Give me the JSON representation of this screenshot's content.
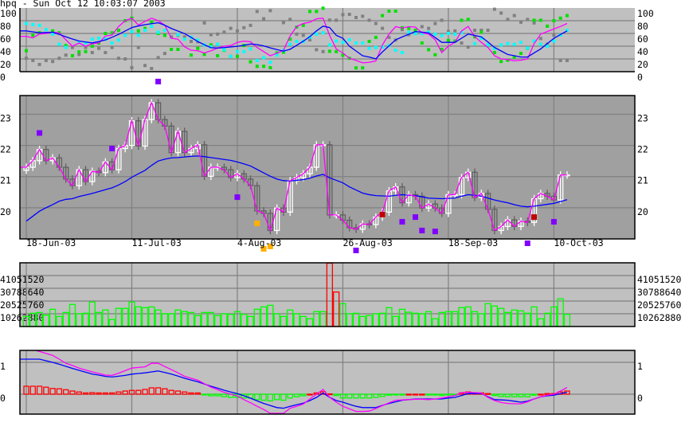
{
  "title": "hpq - Sun Oct 12 10:03:07 2003",
  "colors": {
    "panel_bg": "#c0c0c0",
    "price_bg": "#a0a0a0",
    "grid": "#808080",
    "close_line": "#ff00ff",
    "average_line": "#0000ff",
    "up_candle": "#ffffff",
    "down_candle": "#606060",
    "volume_bar": "#00ff00",
    "volume_highlight": "#ff0000",
    "hist_positive": "#ff0000",
    "hist_negative": "#00ff00",
    "dot_gray": "#808080",
    "dot_green": "#00e000",
    "dot_cyan": "#00ffff",
    "marker_purple": "#8000ff",
    "marker_red": "#c00000",
    "marker_orange": "#ffb000"
  },
  "chart_data": [
    {
      "type": "line",
      "panel": "oscillator",
      "ylim": [
        0,
        100
      ],
      "yticks": [
        "100",
        "80",
        "60",
        "40",
        "20",
        "0"
      ],
      "grid": true,
      "series": [
        {
          "color": "magenta",
          "values": [
            55.5,
            53,
            59,
            60,
            62,
            61,
            50,
            40,
            45,
            40,
            44,
            45,
            56,
            57.5,
            71,
            80,
            84,
            73,
            79,
            84,
            80,
            73,
            52.5,
            51,
            39,
            33.6,
            32.8,
            29.4,
            32.8,
            37,
            40,
            41,
            46,
            48,
            47,
            38,
            31.5,
            25,
            29,
            33.6,
            56,
            71,
            75.6,
            77.7,
            83,
            84,
            56.7,
            35.7,
            29.4,
            21,
            17.6,
            13.9,
            14.7,
            16.8,
            42,
            59,
            70.6,
            68.5,
            70.6,
            70,
            61,
            59,
            50,
            30,
            40,
            46,
            64,
            71,
            55,
            46,
            38,
            25,
            20,
            19,
            17,
            18,
            20,
            44,
            59,
            63,
            67,
            71,
            75.6
          ]
        },
        {
          "color": "blue",
          "values": [
            64,
            62.5,
            61,
            61.5,
            62,
            58.5,
            54.7,
            51.3,
            48.1,
            46.6,
            45.1,
            47.3,
            49.8,
            54,
            58.5,
            63.8,
            69.3,
            71.8,
            73.7,
            75.3,
            76.8,
            72.8,
            67.8,
            63.8,
            59.8,
            53.8,
            47.3,
            42.3,
            37.7,
            37.1,
            37.8,
            38.8,
            39.8,
            41.4,
            43.4,
            42.5,
            40.5,
            37.4,
            34.7,
            32.2,
            35.2,
            41.4,
            47.9,
            55,
            64,
            71.4,
            69.3,
            57,
            52.5,
            40,
            32.5,
            25,
            23,
            20.1,
            31,
            40.5,
            50,
            54.5,
            58.8,
            63,
            62,
            61,
            53.5,
            46,
            46,
            46,
            52.5,
            59,
            56.9,
            54.6,
            46.5,
            38,
            32.5,
            27,
            25,
            23,
            23,
            29.4,
            35.7,
            44,
            52.3,
            58.3,
            64
          ]
        }
      ],
      "dots": [
        {
          "color": "gray",
          "values": [
            21,
            17.6,
            11.3,
            17.6,
            16,
            21,
            26,
            38,
            27,
            38,
            30,
            36.6,
            30,
            38,
            21,
            20,
            6.3,
            38,
            9.7,
            5,
            22,
            28.6,
            54.6,
            57,
            54.6,
            47.5,
            47,
            76.5,
            58,
            59,
            62,
            68,
            64,
            69,
            72.7,
            94.5,
            83,
            95.8,
            null,
            77,
            82,
            59,
            57,
            50,
            34.5,
            31.5,
            81,
            80.7,
            89.5,
            90,
            85,
            87,
            80.7,
            75.6,
            68,
            53.8,
            49.6,
            66,
            58,
            64,
            70.6,
            68,
            75.6,
            80.7,
            63,
            64,
            45,
            38.6,
            65,
            65,
            65,
            98,
            92,
            82,
            88,
            77.7,
            82,
            76.5,
            52,
            43,
            57.5,
            17.6,
            17.6
          ]
        },
        {
          "color": "green",
          "values": [
            33,
            57,
            61,
            null,
            64,
            61,
            41,
            25,
            31,
            31.5,
            40,
            45,
            60,
            61,
            65,
            80,
            84,
            64,
            68,
            78,
            60,
            57,
            35,
            35,
            null,
            26,
            36.6,
            27,
            42,
            25,
            33.6,
            24,
            24,
            41,
            15.5,
            8.4,
            8.4,
            6.3,
            29.4,
            30.7,
            51,
            70,
            72.7,
            94.5,
            94.5,
            99.6,
            32,
            31.5,
            26,
            21,
            5.9,
            5.9,
            47.5,
            53.8,
            88,
            95,
            95,
            69,
            68,
            65,
            45,
            34.5,
            26.5,
            35,
            49,
            48,
            80.7,
            82,
            54.6,
            62,
            41,
            30,
            16,
            18,
            23,
            28.6,
            36.6,
            80.7,
            80.7,
            71.4,
            80,
            84,
            88
          ]
        },
        {
          "color": "cyan",
          "values": [
            75.6,
            74,
            72.7,
            66,
            59,
            43,
            38,
            null,
            46,
            45,
            51,
            52.5,
            51,
            45,
            49.6,
            57,
            63,
            57,
            65,
            71,
            62,
            65,
            null,
            58,
            51,
            54,
            49.6,
            42,
            39,
            43,
            34.5,
            24,
            31.5,
            31.5,
            35.7,
            17.6,
            22,
            14.7,
            26,
            33.6,
            43,
            47.5,
            47.5,
            54,
            59,
            61,
            42,
            48,
            46,
            50,
            45,
            45,
            36.6,
            38,
            38.6,
            40.8,
            33.6,
            30,
            61.8,
            59.7,
            59.7,
            62,
            59,
            56.7,
            60,
            59,
            61,
            null,
            44,
            52.5,
            42,
            36.6,
            42,
            44,
            42.9,
            46,
            37,
            48,
            43,
            40,
            48,
            57.5,
            65
          ]
        }
      ]
    },
    {
      "type": "candlestick",
      "panel": "price",
      "ylim": [
        19.0,
        23.6
      ],
      "yticks": [
        "23",
        "22",
        "21",
        "20"
      ],
      "grid": true,
      "xtick_labels": [
        {
          "index": 0,
          "label": "18-Jun-03"
        },
        {
          "index": 16,
          "label": "11-Jul-03"
        },
        {
          "index": 32,
          "label": "4-Aug-03"
        },
        {
          "index": 48,
          "label": "26-Aug-03"
        },
        {
          "index": 64,
          "label": "18-Sep-03"
        },
        {
          "index": 80,
          "label": "10-Oct-03"
        }
      ],
      "close": [
        21.3,
        21.51,
        21.87,
        21.51,
        21.6,
        21.3,
        20.92,
        20.71,
        21.22,
        20.84,
        21.17,
        21.13,
        21.47,
        21.22,
        21.9,
        22.0,
        22.79,
        21.98,
        22.83,
        23.37,
        22.83,
        22.62,
        21.77,
        22.45,
        21.77,
        21.9,
        22.02,
        21.01,
        21.3,
        21.3,
        21.22,
        20.97,
        21.09,
        20.92,
        20.71,
        19.9,
        19.82,
        19.27,
        19.99,
        19.86,
        20.87,
        20.97,
        21.09,
        21.3,
        22.02,
        22.02,
        19.77,
        19.77,
        19.6,
        19.36,
        19.31,
        19.48,
        19.46,
        19.7,
        19.86,
        20.54,
        20.67,
        20.16,
        20.42,
        20.37,
        19.99,
        20.12,
        19.99,
        19.82,
        20.42,
        20.42,
        20.97,
        21.14,
        20.33,
        20.46,
        19.95,
        19.27,
        19.4,
        19.61,
        19.4,
        19.57,
        19.53,
        20.29,
        20.46,
        20.37,
        20.25,
        21.05,
        21.05
      ],
      "moving_average": [
        19.57,
        19.73,
        19.89,
        20.0,
        20.1,
        20.21,
        20.27,
        20.29,
        20.36,
        20.41,
        20.46,
        20.52,
        20.58,
        20.64,
        20.73,
        20.84,
        20.98,
        21.09,
        21.2,
        21.36,
        21.5,
        21.56,
        21.6,
        21.61,
        21.63,
        21.65,
        21.66,
        21.64,
        21.61,
        21.58,
        21.55,
        21.52,
        21.47,
        21.41,
        21.34,
        21.23,
        21.12,
        21.01,
        20.92,
        20.87,
        20.86,
        20.88,
        20.9,
        20.95,
        21.02,
        21.07,
        20.96,
        20.88,
        20.8,
        20.67,
        20.57,
        20.47,
        20.42,
        20.39,
        20.38,
        20.37,
        20.4,
        20.42,
        20.4,
        20.39,
        20.35,
        20.31,
        20.3,
        20.29,
        20.3,
        20.31,
        20.37,
        20.42,
        20.4,
        20.37,
        20.31,
        20.25,
        20.2,
        20.16,
        20.1,
        20.05,
        20.03,
        20.05,
        20.08,
        20.11,
        20.14,
        20.2,
        20.26
      ],
      "markers": [
        {
          "index": 2,
          "value": 22.4,
          "color": "purple"
        },
        {
          "index": 13,
          "value": 21.9,
          "color": "purple"
        },
        {
          "index": 20,
          "value": 24.05,
          "color": "purple"
        },
        {
          "index": 32,
          "value": 20.34,
          "color": "purple"
        },
        {
          "index": 35,
          "value": 19.5,
          "color": "orange"
        },
        {
          "index": 36,
          "value": 18.68,
          "color": "orange"
        },
        {
          "index": 37,
          "value": 18.76,
          "color": "orange"
        },
        {
          "index": 50,
          "value": 18.63,
          "color": "purple"
        },
        {
          "index": 54,
          "value": 19.78,
          "color": "red"
        },
        {
          "index": 57,
          "value": 19.55,
          "color": "purple"
        },
        {
          "index": 59,
          "value": 19.7,
          "color": "purple"
        },
        {
          "index": 60,
          "value": 19.27,
          "color": "purple"
        },
        {
          "index": 62,
          "value": 19.24,
          "color": "purple"
        },
        {
          "index": 76,
          "value": 18.86,
          "color": "purple"
        },
        {
          "index": 77,
          "value": 19.7,
          "color": "red"
        },
        {
          "index": 80,
          "value": 19.55,
          "color": "purple"
        }
      ]
    },
    {
      "type": "bar",
      "panel": "volume",
      "ylim": [
        0,
        51314400
      ],
      "yticks": [
        "41051520",
        "30788640",
        "20525760",
        "10262880"
      ],
      "grid": true,
      "values": [
        8100000,
        10700000,
        11300000,
        9200000,
        13900000,
        8100000,
        11300000,
        17800000,
        10300000,
        10700000,
        19700000,
        11300000,
        13300000,
        5600000,
        14600000,
        14600000,
        19700000,
        15800000,
        15200000,
        15800000,
        13300000,
        10300000,
        10300000,
        13300000,
        12000000,
        11300000,
        8800000,
        11300000,
        11300000,
        8800000,
        10300000,
        9800000,
        12000000,
        9800000,
        8100000,
        13900000,
        15800000,
        17100000,
        10300000,
        8100000,
        13300000,
        10300000,
        8100000,
        6200000,
        12000000,
        12000000,
        55000000,
        27800000,
        18400000,
        10300000,
        10700000,
        8100000,
        8800000,
        10300000,
        10700000,
        15200000,
        8100000,
        13900000,
        11500000,
        10700000,
        10300000,
        12000000,
        6200000,
        11300000,
        12000000,
        12000000,
        15200000,
        15800000,
        12000000,
        10300000,
        18400000,
        16500000,
        14600000,
        11300000,
        13300000,
        12600000,
        10700000,
        15800000,
        6200000,
        10700000,
        15800000,
        22300000,
        9800000
      ],
      "highlight_indices": [
        46,
        47
      ]
    },
    {
      "type": "line",
      "panel": "macd",
      "ylim": [
        -0.625,
        1.375
      ],
      "yticks": [
        "1",
        "0"
      ],
      "grid": true,
      "series": [
        {
          "color": "magenta",
          "values": [
            1.4,
            1.4,
            1.34,
            1.28,
            1.22,
            1.1,
            0.97,
            0.9,
            0.82,
            0.76,
            0.7,
            0.65,
            0.6,
            0.59,
            0.66,
            0.74,
            0.82,
            0.84,
            0.86,
            0.97,
            0.97,
            0.87,
            0.77,
            0.67,
            0.56,
            0.5,
            0.44,
            0.33,
            0.22,
            0.14,
            0.06,
            0,
            -0.06,
            -0.17,
            -0.27,
            -0.38,
            -0.48,
            -0.6,
            -0.6,
            -0.6,
            -0.44,
            -0.38,
            -0.31,
            -0.15,
            0,
            0.15,
            -0.1,
            -0.25,
            -0.38,
            -0.46,
            -0.54,
            -0.54,
            -0.53,
            -0.45,
            -0.36,
            -0.27,
            -0.19,
            -0.18,
            -0.17,
            -0.16,
            -0.16,
            -0.17,
            -0.15,
            -0.12,
            -0.08,
            -0.04,
            0.05,
            0.06,
            0.05,
            0.04,
            -0.1,
            -0.2,
            -0.26,
            -0.29,
            -0.3,
            -0.3,
            -0.24,
            -0.15,
            -0.08,
            -0.03,
            0,
            0.1,
            0.21
          ]
        },
        {
          "color": "blue",
          "values": [
            1.1,
            1.1,
            1.1,
            1.05,
            1.0,
            0.94,
            0.875,
            0.81,
            0.75,
            0.69,
            0.63,
            0.6,
            0.56,
            0.54,
            0.565,
            0.59,
            0.63,
            0.65,
            0.67,
            0.7,
            0.73,
            0.68,
            0.63,
            0.57,
            0.5,
            0.445,
            0.39,
            0.32,
            0.25,
            0.19,
            0.125,
            0.07,
            0.02,
            -0.05,
            -0.125,
            -0.21,
            -0.29,
            -0.355,
            -0.42,
            -0.44,
            -0.38,
            -0.33,
            -0.28,
            -0.2,
            -0.1,
            0.04,
            -0.1,
            -0.2,
            -0.25,
            -0.32,
            -0.38,
            -0.42,
            -0.42,
            -0.42,
            -0.35,
            -0.29,
            -0.24,
            -0.19,
            -0.17,
            -0.15,
            -0.15,
            -0.15,
            -0.15,
            -0.15,
            -0.12,
            -0.1,
            -0.04,
            0.02,
            0.02,
            0.02,
            -0.08,
            -0.17,
            -0.18,
            -0.19,
            -0.22,
            -0.25,
            -0.22,
            -0.15,
            -0.08,
            -0.05,
            -0.03,
            0.02,
            0.06
          ]
        }
      ],
      "histogram": [
        0.25,
        0.25,
        0.25,
        0.22,
        0.18,
        0.17,
        0.14,
        0.1,
        0.07,
        0.04,
        0.05,
        0.04,
        0.04,
        0.04,
        0.07,
        0.1,
        0.12,
        0.12,
        0.15,
        0.2,
        0.2,
        0.17,
        0.12,
        0.1,
        0.07,
        0.04,
        0.04,
        -0.01,
        -0.05,
        -0.05,
        -0.08,
        -0.1,
        -0.1,
        -0.12,
        -0.12,
        -0.17,
        -0.19,
        -0.21,
        -0.17,
        -0.19,
        -0.12,
        -0.08,
        -0.05,
        0,
        0.04,
        0.08,
        0.01,
        -0.04,
        -0.12,
        -0.12,
        -0.12,
        -0.12,
        -0.12,
        -0.1,
        -0.07,
        -0.03,
        -0.01,
        -0.01,
        0,
        0,
        0,
        -0.01,
        -0.01,
        -0.04,
        -0.01,
        -0.01,
        0.04,
        0.07,
        0.04,
        0.04,
        0.02,
        -0.04,
        -0.07,
        -0.08,
        -0.08,
        -0.08,
        -0.08,
        -0.03,
        0,
        0.02,
        0.02,
        0.07,
        0.1
      ]
    }
  ]
}
